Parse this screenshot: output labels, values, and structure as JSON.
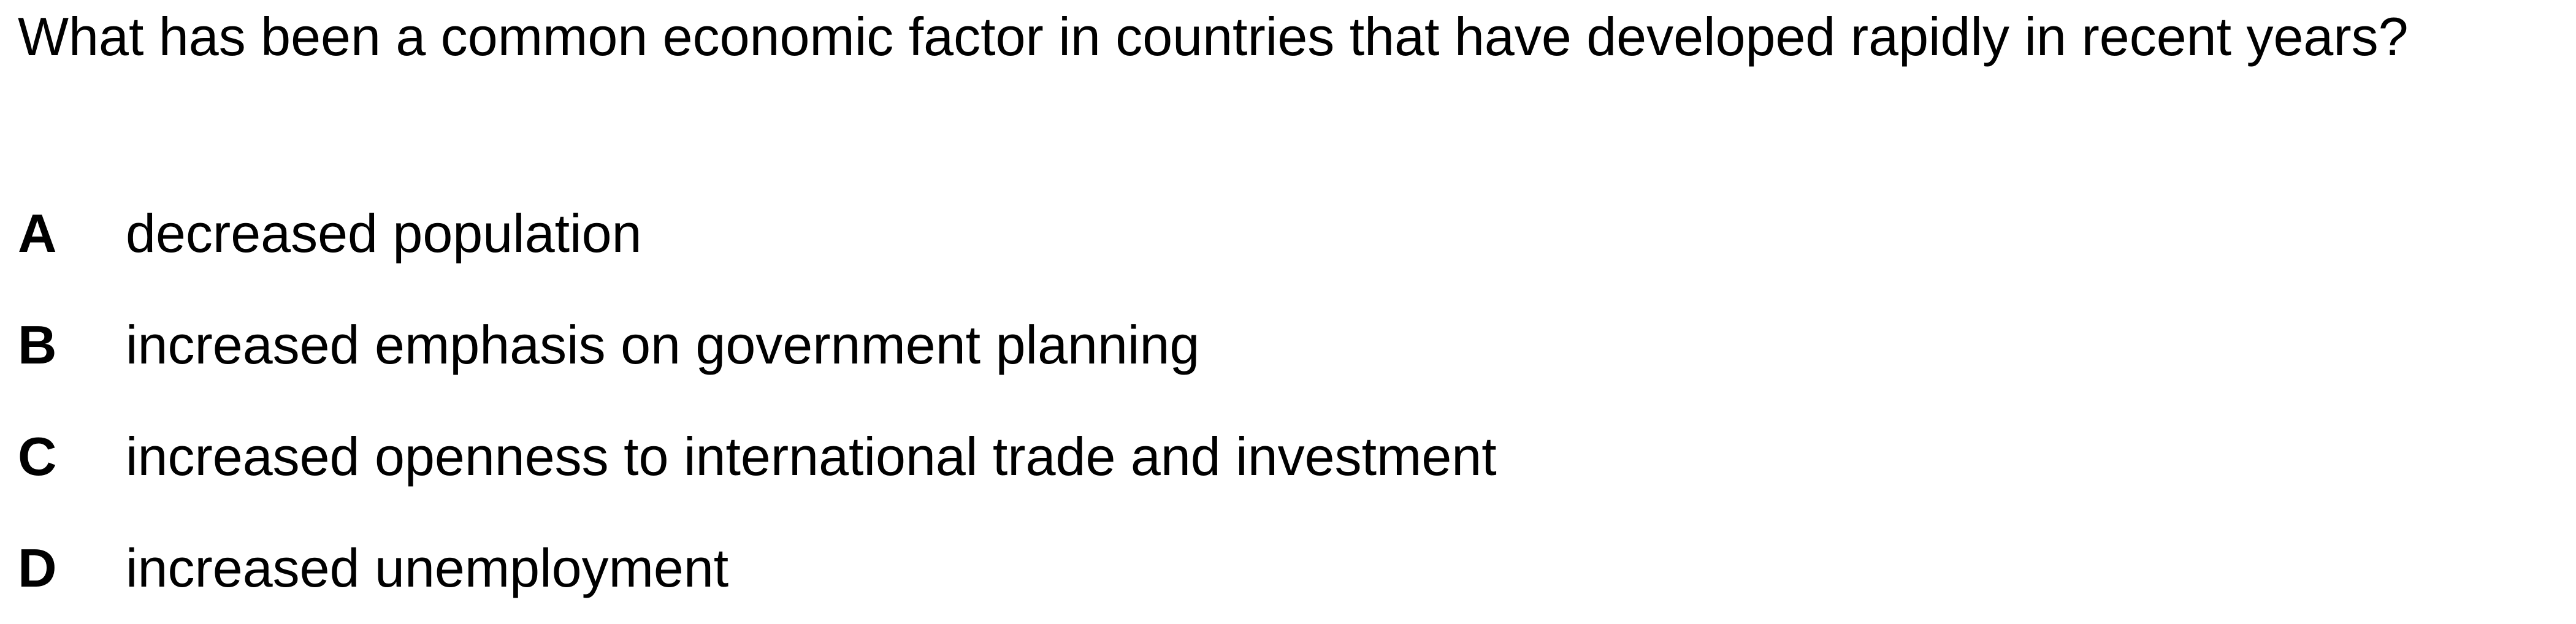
{
  "question": {
    "text": "What has been a common economic factor in countries that have developed rapidly in recent years?"
  },
  "options": [
    {
      "letter": "A",
      "text": "decreased population"
    },
    {
      "letter": "B",
      "text": "increased emphasis on government planning"
    },
    {
      "letter": "C",
      "text": "increased openness to international trade and investment"
    },
    {
      "letter": "D",
      "text": "increased unemployment"
    }
  ]
}
